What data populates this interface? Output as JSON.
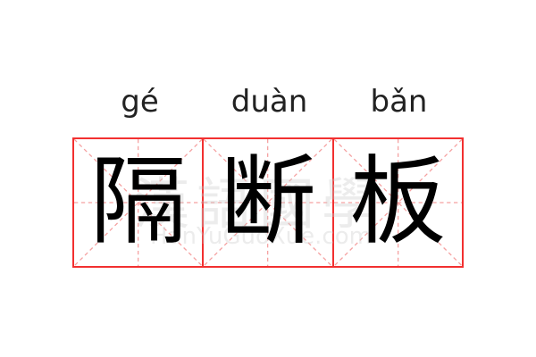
{
  "word": [
    {
      "pinyin": "gé",
      "char": "隔"
    },
    {
      "pinyin": "duàn",
      "char": "断"
    },
    {
      "pinyin": "bǎn",
      "char": "板"
    }
  ],
  "watermark": {
    "chinese": "漢語國學",
    "latin": "HanYuGuoXue.com"
  },
  "colors": {
    "grid_border": "#f23030",
    "grid_guides": "#f5a0a0",
    "text": "#000000"
  }
}
